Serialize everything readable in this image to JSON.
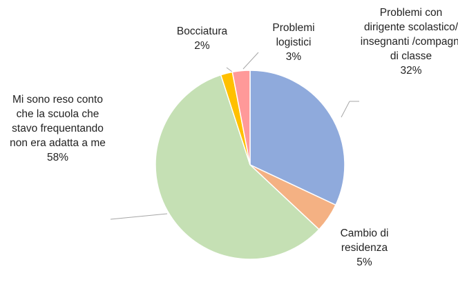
{
  "chart_data": {
    "type": "pie",
    "categories": [
      "Problemi con dirigente scolastico/ insegnanti /compagni di classe",
      "Cambio di residenza",
      "Mi sono reso conto che la scuola che stavo frequentando non era adatta a me",
      "Bocciatura",
      "Problemi logistici"
    ],
    "values": [
      32,
      5,
      58,
      2,
      3
    ],
    "value_labels": [
      "32%",
      "5%",
      "58%",
      "2%",
      "3%"
    ],
    "colors": [
      "#8faadc",
      "#f4b183",
      "#c5e0b4",
      "#ffc000",
      "#ff9999"
    ]
  }
}
